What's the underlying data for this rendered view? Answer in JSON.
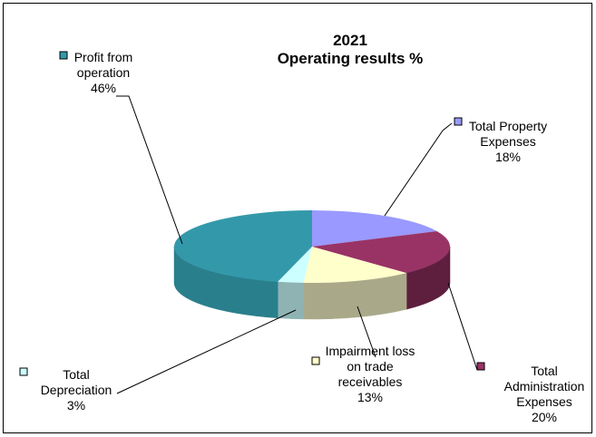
{
  "chart_data": {
    "type": "pie",
    "title_line1": "2021",
    "title_line2": "Operating results %",
    "slices": [
      {
        "name": "Total Property Expenses",
        "label_lines": [
          "Total Property",
          "Expenses"
        ],
        "pct_label": "18%",
        "value": 18,
        "color": "#9999ff",
        "side": "#6b6bb3"
      },
      {
        "name": "Total Administration Expenses",
        "label_lines": [
          "Total",
          "Administration",
          "Expenses"
        ],
        "pct_label": "20%",
        "value": 20,
        "color": "#993366",
        "side": "#5e1f3f"
      },
      {
        "name": "Impairment loss on trade receivables",
        "label_lines": [
          "Impairment loss",
          "on trade",
          "receivables"
        ],
        "pct_label": "13%",
        "value": 13,
        "color": "#ffffcc",
        "side": "#a9a98a"
      },
      {
        "name": "Total Depreciation",
        "label_lines": [
          "Total",
          "Depreciation"
        ],
        "pct_label": "3%",
        "value": 3,
        "color": "#ccffff",
        "side": "#8fb3b3"
      },
      {
        "name": "Profit from operation",
        "label_lines": [
          "Profit from",
          "operation"
        ],
        "pct_label": "46%",
        "value": 46,
        "color": "#3399aa",
        "side": "#2a7f8c"
      }
    ]
  }
}
